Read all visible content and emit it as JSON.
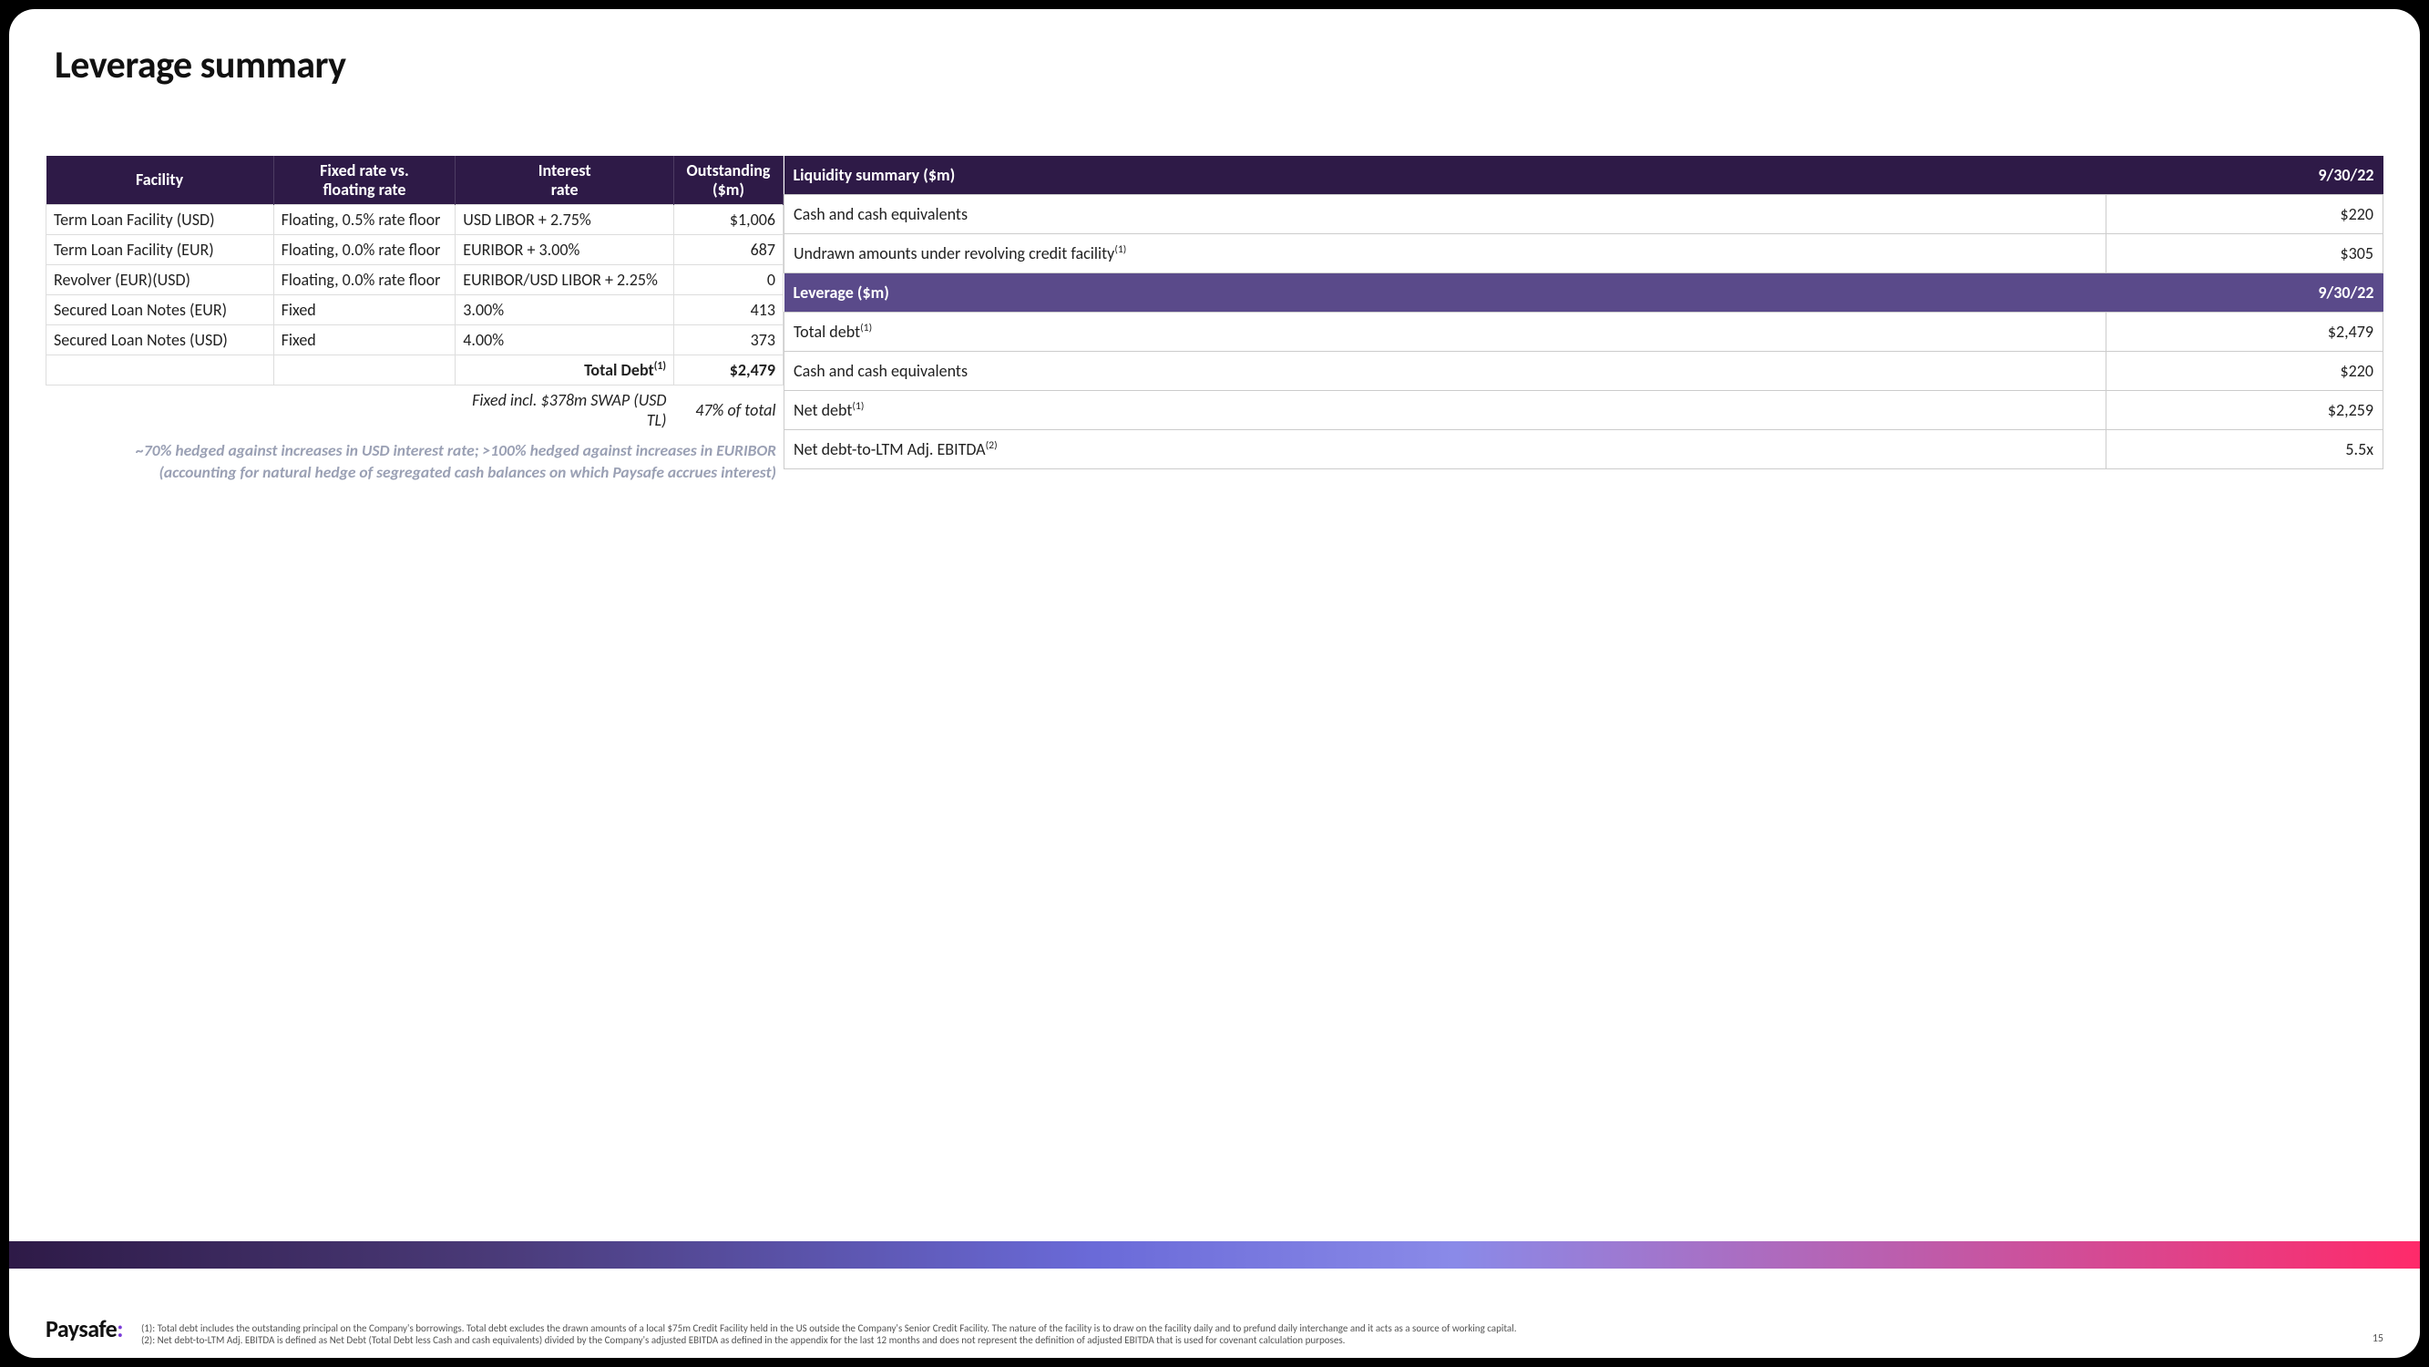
{
  "title": "Leverage summary",
  "debt_table": {
    "headers": {
      "facility": "Facility",
      "rate_type": "Fixed rate vs.\nfloating rate",
      "interest": "Interest\nrate",
      "outstanding": "Outstanding\n($m)"
    },
    "rows": [
      {
        "facility": "Term Loan Facility (USD)",
        "rate_type": "Floating, 0.5% rate floor",
        "interest": "USD LIBOR + 2.75%",
        "outstanding": "$1,006"
      },
      {
        "facility": "Term Loan Facility (EUR)",
        "rate_type": "Floating, 0.0% rate floor",
        "interest": "EURIBOR + 3.00%",
        "outstanding": "687"
      },
      {
        "facility": "Revolver (EUR)(USD)",
        "rate_type": "Floating, 0.0% rate floor",
        "interest": "EURIBOR/USD LIBOR  + 2.25%",
        "outstanding": "0"
      },
      {
        "facility": "Secured Loan Notes (EUR)",
        "rate_type": "Fixed",
        "interest": "3.00%",
        "outstanding": "413"
      },
      {
        "facility": "Secured Loan Notes (USD)",
        "rate_type": "Fixed",
        "interest": "4.00%",
        "outstanding": "373"
      }
    ],
    "total_label": "Total Debt",
    "total_sup": "(1)",
    "total_value": "$2,479",
    "swap_label": "Fixed incl. $378m SWAP (USD TL)",
    "swap_value": "47% of total",
    "hedge_note_line1": "~70% hedged against increases in USD interest rate; >100% hedged against increases in EURIBOR",
    "hedge_note_line2": "(accounting for natural hedge of segregated cash balances on which Paysafe accrues interest)"
  },
  "liquidity": {
    "header": "Liquidity summary ($m)",
    "date": "9/30/22",
    "rows": [
      {
        "label": "Cash and cash equivalents",
        "sup": "",
        "value": "$220"
      },
      {
        "label": "Undrawn amounts under revolving credit facility",
        "sup": "(1)",
        "value": "$305"
      }
    ]
  },
  "leverage": {
    "header": "Leverage ($m)",
    "date": "9/30/22",
    "rows": [
      {
        "label": "Total debt",
        "sup": "(1)",
        "value": "$2,479"
      },
      {
        "label": "Cash and cash equivalents",
        "sup": "",
        "value": "$220"
      },
      {
        "label": "Net debt",
        "sup": "(1)",
        "value": "$2,259",
        "net": true
      },
      {
        "label": "Net debt-to-LTM Adj. EBITDA",
        "sup": "(2)",
        "value": "5.5x"
      }
    ]
  },
  "footnotes": {
    "n1": "(1): Total debt includes the outstanding principal on the Company's borrowings. Total debt excludes the drawn amounts of a local $75m Credit Facility  held in the US outside the Company's Senior Credit Facility. The nature of the facility is to draw on the facility daily and to prefund daily interchange and it acts as a source of working capital.",
    "n2": "(2): Net debt-to-LTM Adj. EBITDA is defined as Net Debt (Total Debt less Cash and cash equivalents) divided by the Company's adjusted EBITDA as defined in the appendix for the last 12 months and does not represent the definition of adjusted EBITDA that is used for covenant calculation purposes."
  },
  "logo_text": "Paysafe",
  "page_number": "15",
  "colors": {
    "header_dark": "#2e1a47",
    "header_mid": "#5a4a8a",
    "accent_pink": "#ff2a6a",
    "accent_purple": "#7a3bd8"
  }
}
